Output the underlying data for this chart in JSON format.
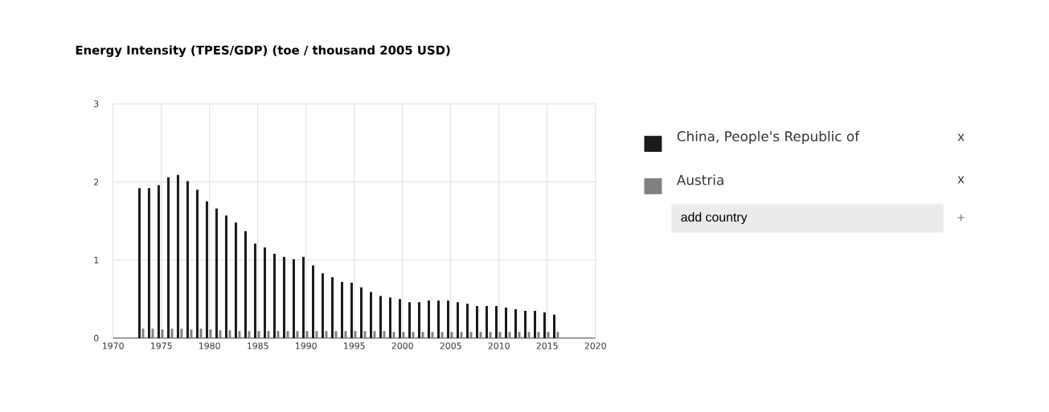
{
  "chart_data": {
    "type": "bar",
    "title": "Energy Intensity (TPES/GDP) (toe / thousand 2005 USD)",
    "x": [
      1973,
      1974,
      1975,
      1976,
      1977,
      1978,
      1979,
      1980,
      1981,
      1982,
      1983,
      1984,
      1985,
      1986,
      1987,
      1988,
      1989,
      1990,
      1991,
      1992,
      1993,
      1994,
      1995,
      1996,
      1997,
      1998,
      1999,
      2000,
      2001,
      2002,
      2003,
      2004,
      2005,
      2006,
      2007,
      2008,
      2009,
      2010,
      2011,
      2012,
      2013,
      2014,
      2015,
      2016
    ],
    "series": [
      {
        "name": "China, People's Republic of",
        "color": "#1a1a1a",
        "values": [
          1.92,
          1.92,
          1.96,
          2.06,
          2.09,
          2.01,
          1.9,
          1.75,
          1.66,
          1.57,
          1.48,
          1.37,
          1.21,
          1.16,
          1.08,
          1.04,
          1.01,
          1.04,
          0.93,
          0.83,
          0.78,
          0.72,
          0.71,
          0.65,
          0.59,
          0.54,
          0.52,
          0.5,
          0.46,
          0.46,
          0.48,
          0.48,
          0.48,
          0.46,
          0.44,
          0.41,
          0.41,
          0.41,
          0.39,
          0.37,
          0.35,
          0.35,
          0.33,
          0.3
        ]
      },
      {
        "name": "Austria",
        "color": "#808080",
        "values": [
          0.12,
          0.12,
          0.11,
          0.12,
          0.12,
          0.11,
          0.12,
          0.11,
          0.1,
          0.1,
          0.09,
          0.09,
          0.09,
          0.09,
          0.09,
          0.09,
          0.09,
          0.09,
          0.09,
          0.09,
          0.09,
          0.09,
          0.09,
          0.09,
          0.09,
          0.09,
          0.08,
          0.08,
          0.08,
          0.08,
          0.08,
          0.08,
          0.08,
          0.08,
          0.08,
          0.08,
          0.08,
          0.08,
          0.08,
          0.08,
          0.08,
          0.08,
          0.08,
          0.08
        ]
      }
    ],
    "xlim": [
      1970,
      2020
    ],
    "xticks": [
      1970,
      1975,
      1980,
      1985,
      1990,
      1995,
      2000,
      2005,
      2010,
      2015,
      2020
    ],
    "ylim": [
      0,
      3
    ],
    "yticks": [
      0,
      1,
      2,
      3
    ],
    "grid": true,
    "legend": "right",
    "annotations": [
      "x",
      "x",
      "add country",
      "+"
    ]
  }
}
